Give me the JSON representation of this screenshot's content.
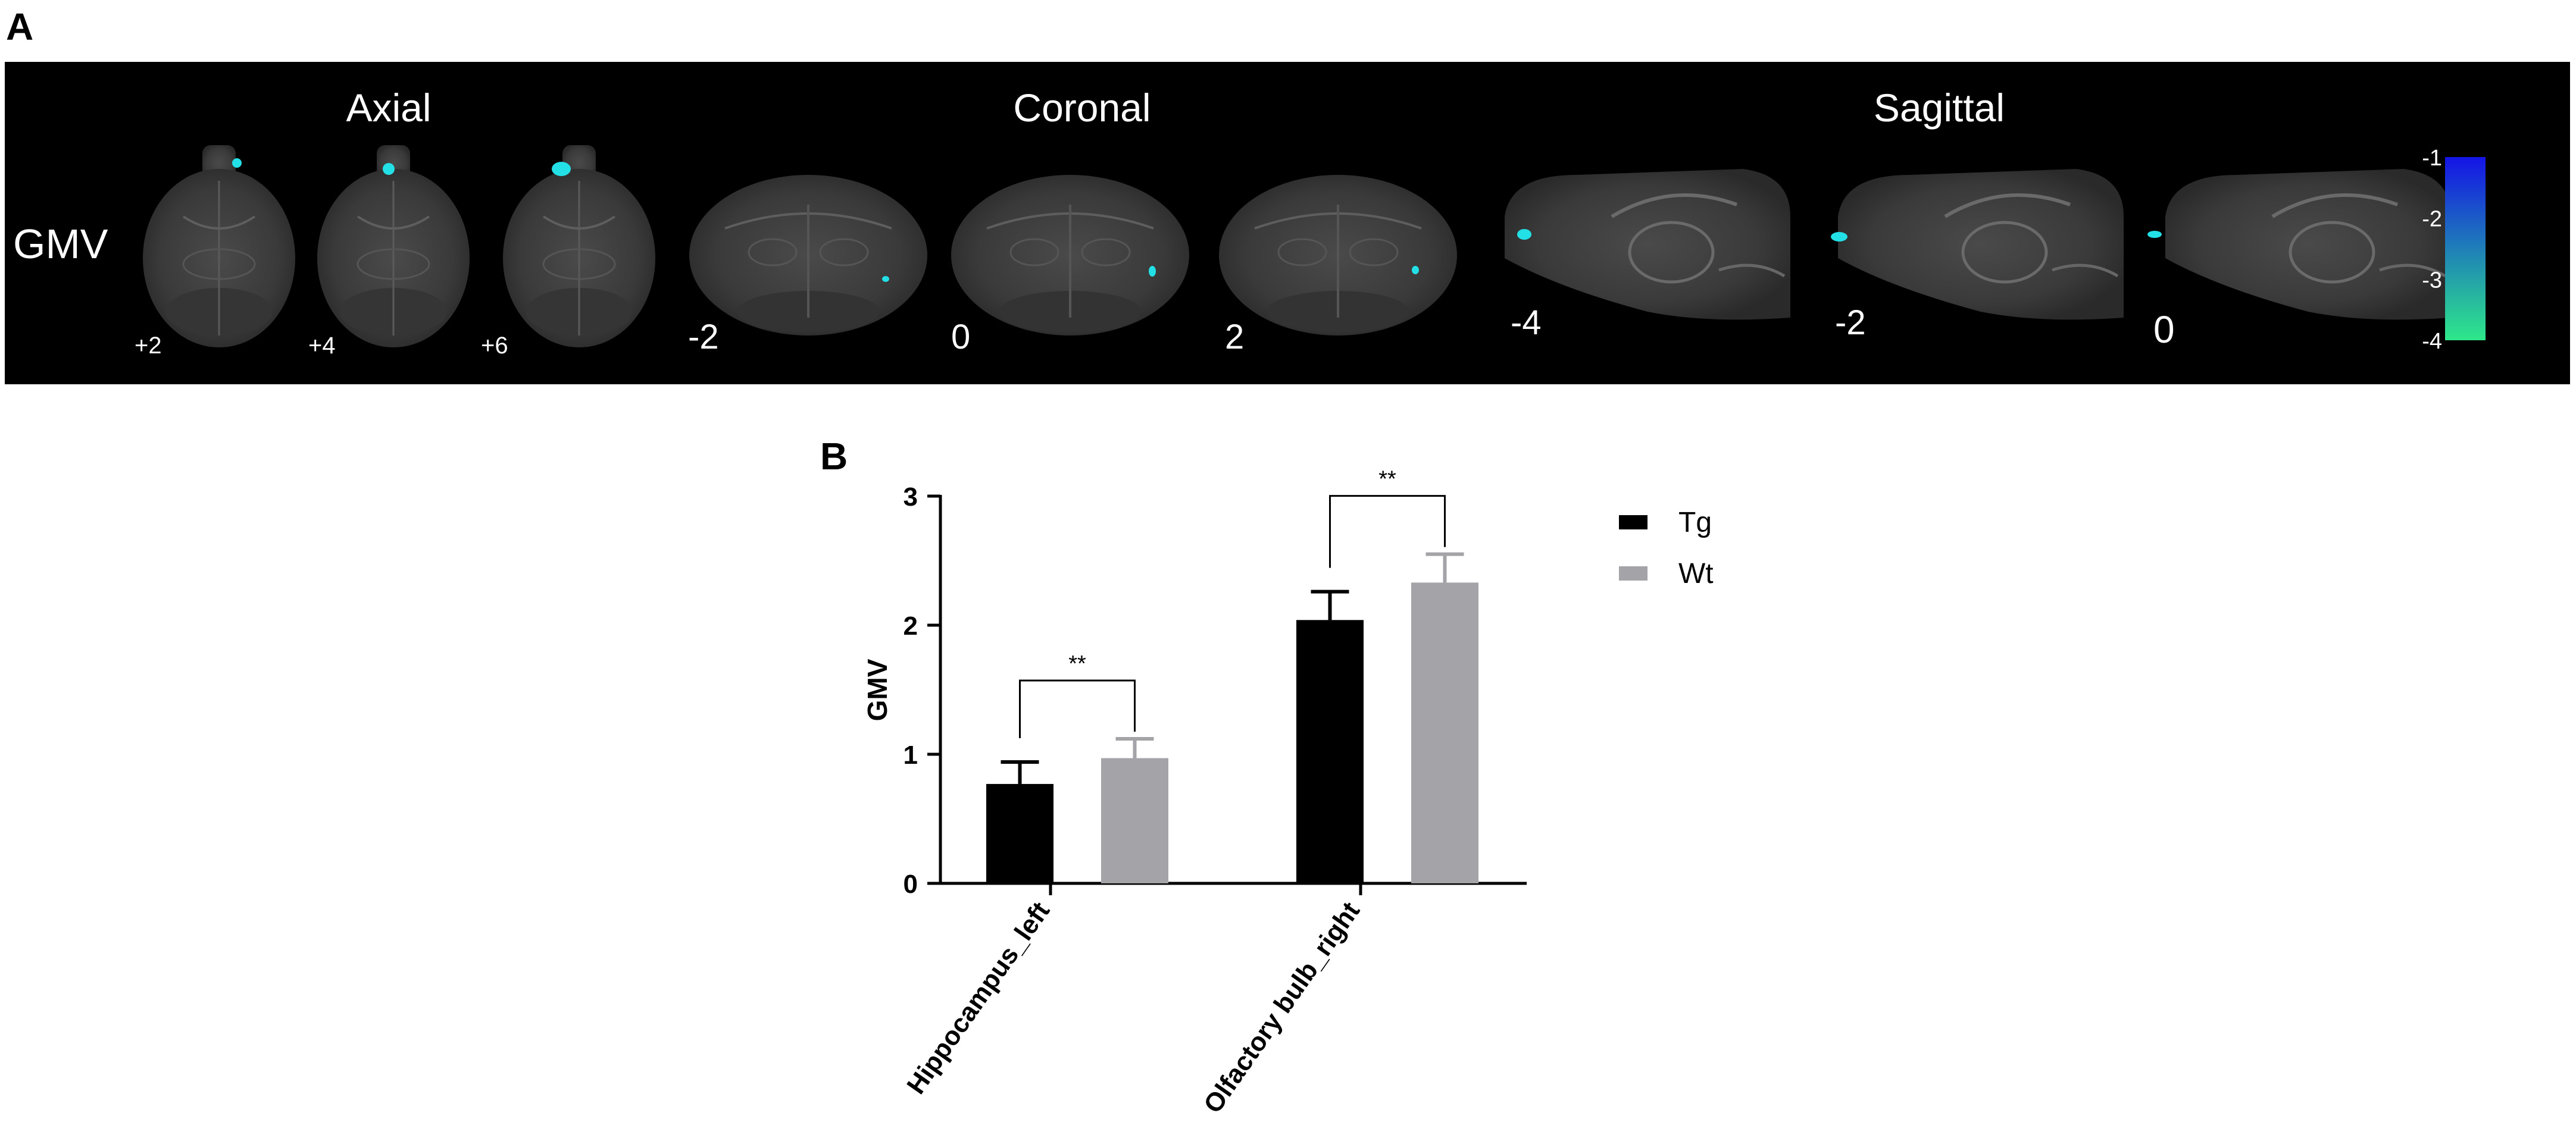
{
  "panel_a": {
    "label": "A",
    "row_label": "GMV",
    "sections": [
      {
        "title": "Axial",
        "slices": [
          "+2",
          "+4",
          "+6"
        ]
      },
      {
        "title": "Coronal",
        "slices": [
          "-2",
          "0",
          "2"
        ]
      },
      {
        "title": "Sagittal",
        "slices": [
          "-4",
          "-2",
          "0"
        ]
      }
    ],
    "colorbar": {
      "ticks": [
        "-1",
        "-2",
        "-3",
        "-4"
      ],
      "color_top": "#1414e6",
      "color_bottom": "#2ee88a"
    },
    "highlight_color": "#22e0e6"
  },
  "panel_b": {
    "label": "B"
  },
  "chart_data": {
    "type": "bar",
    "categories": [
      "Hippocampus_left",
      "Olfactory bulb_right"
    ],
    "series": [
      {
        "name": "Tg",
        "values": [
          0.77,
          2.04
        ],
        "errors": [
          0.17,
          0.22
        ],
        "color": "#000000"
      },
      {
        "name": "Wt",
        "values": [
          0.97,
          2.33
        ],
        "errors": [
          0.15,
          0.22
        ],
        "color": "#a3a3a8"
      }
    ],
    "ylabel": "GMV",
    "ylim": [
      0,
      3
    ],
    "yticks": [
      0,
      1,
      2,
      3
    ],
    "significance": [
      "**",
      "**"
    ],
    "legend": "top-right",
    "grid": false
  }
}
